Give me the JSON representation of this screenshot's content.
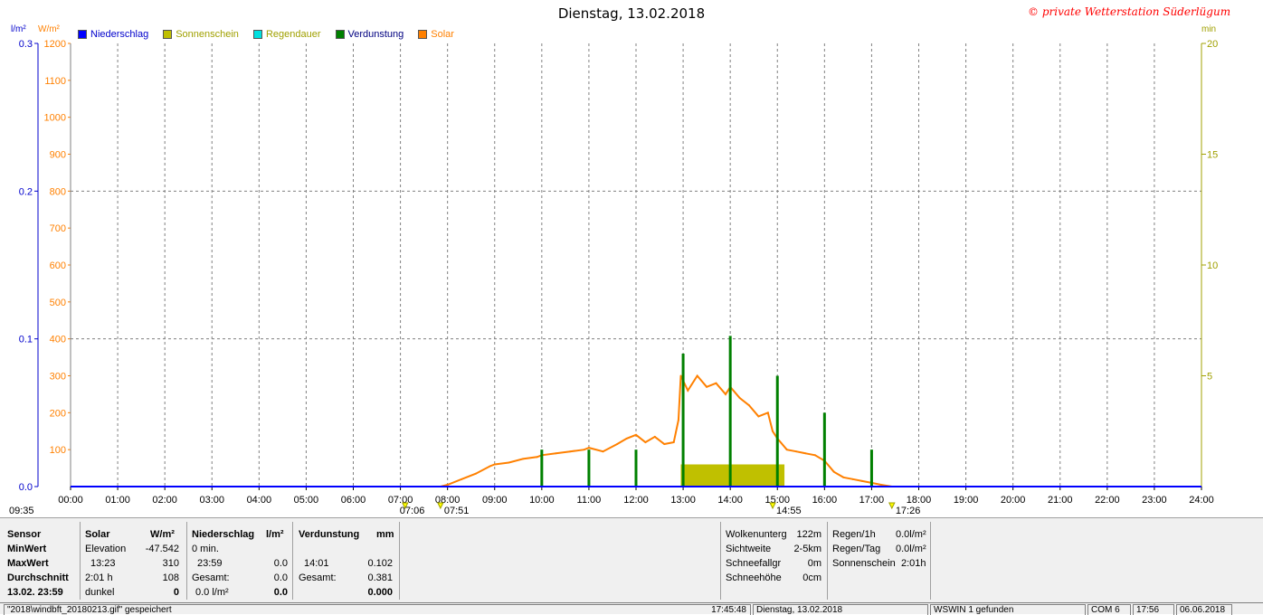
{
  "title": "Dienstag, 13.02.2018",
  "copyright": "© private Wetterstation Süderlügum",
  "units": {
    "left1": "l/m²",
    "left2": "W/m²",
    "right": "min"
  },
  "colors": {
    "rain": "#0000ff",
    "sunshine": "#c0c000",
    "rain_duration": "#00e0e0",
    "evaporation": "#008000",
    "solar": "#ff8000"
  },
  "legend": [
    {
      "label": "Niederschlag",
      "color": "#0000ff",
      "text_color": "#0000cc"
    },
    {
      "label": "Sonnenschein",
      "color": "#c0c000",
      "text_color": "#a0a000"
    },
    {
      "label": "Regendauer",
      "color": "#00e0e0",
      "text_color": "#a0a000"
    },
    {
      "label": "Verdunstung",
      "color": "#008000",
      "text_color": "#000080"
    },
    {
      "label": "Solar",
      "color": "#ff8000",
      "text_color": "#ff8000"
    }
  ],
  "chart_data": {
    "type": "line",
    "x_label_ticks": [
      "00:00",
      "01:00",
      "02:00",
      "03:00",
      "04:00",
      "05:00",
      "06:00",
      "07:00",
      "08:00",
      "09:00",
      "10:00",
      "11:00",
      "12:00",
      "13:00",
      "14:00",
      "15:00",
      "16:00",
      "17:00",
      "18:00",
      "19:00",
      "20:00",
      "21:00",
      "22:00",
      "23:00",
      "24:00"
    ],
    "x_range_hours": [
      0,
      24
    ],
    "y_left_rain": {
      "range": [
        0,
        0.3
      ],
      "ticks": [
        "0.0",
        "0.1",
        "0.2",
        "0.3"
      ]
    },
    "y_left_solar": {
      "range": [
        0,
        1200
      ],
      "ticks": [
        "100",
        "200",
        "300",
        "400",
        "500",
        "600",
        "700",
        "800",
        "900",
        "1000",
        "1100",
        "1200"
      ]
    },
    "y_right_min": {
      "range": [
        0,
        20
      ],
      "ticks": [
        "5",
        "10",
        "15",
        "20"
      ]
    },
    "grid": true,
    "markers": [
      {
        "label": "09:35",
        "hour": 0
      },
      {
        "label": "07:06",
        "hour": 7.1
      },
      {
        "label": "07:51",
        "hour": 7.85
      },
      {
        "label": "14:55",
        "hour": 14.9
      },
      {
        "label": "17:26",
        "hour": 17.43
      }
    ],
    "series": [
      {
        "name": "Solar",
        "unit": "W/m²",
        "x": [
          7.85,
          8.0,
          8.3,
          8.6,
          8.9,
          9.0,
          9.3,
          9.6,
          9.9,
          10.0,
          10.3,
          10.6,
          10.9,
          11.0,
          11.3,
          11.6,
          11.8,
          12.0,
          12.2,
          12.4,
          12.6,
          12.8,
          12.9,
          12.95,
          13.1,
          13.3,
          13.5,
          13.7,
          13.9,
          14.0,
          14.2,
          14.4,
          14.6,
          14.8,
          14.9,
          15.0,
          15.2,
          15.4,
          15.6,
          15.8,
          16.0,
          16.2,
          16.4,
          16.6,
          16.8,
          17.0,
          17.2,
          17.43
        ],
        "y": [
          0,
          5,
          20,
          35,
          55,
          60,
          65,
          75,
          80,
          85,
          90,
          95,
          100,
          105,
          95,
          115,
          130,
          140,
          120,
          135,
          115,
          120,
          180,
          300,
          260,
          300,
          270,
          280,
          250,
          270,
          240,
          220,
          190,
          200,
          150,
          130,
          100,
          95,
          90,
          85,
          70,
          40,
          25,
          20,
          15,
          10,
          5,
          0
        ]
      },
      {
        "name": "Sonnenschein",
        "unit": "min",
        "x_start": 12.95,
        "x_end": 15.15,
        "y": 1
      },
      {
        "name": "Verdunstung",
        "unit": "l/m²",
        "x": [
          10.0,
          11.0,
          12.0,
          13.0,
          14.0,
          15.0,
          16.0,
          17.0
        ],
        "y": [
          0.025,
          0.025,
          0.025,
          0.09,
          0.102,
          0.075,
          0.05,
          0.025
        ]
      },
      {
        "name": "Niederschlag",
        "unit": "l/m²",
        "x": [
          0,
          24
        ],
        "y": [
          0,
          0
        ]
      }
    ]
  },
  "stats": {
    "headers": {
      "sensor": "Sensor",
      "solar": "Solar",
      "solar_unit": "W/m²",
      "rain": "Niederschlag",
      "rain_unit": "l/m²",
      "evap": "Verdunstung",
      "evap_unit": "mm"
    },
    "rows": [
      {
        "label": "MinWert",
        "s1": "Elevation",
        "s2": "-47.542",
        "r1": "0 min.",
        "r2": "",
        "e1": "",
        "e2": ""
      },
      {
        "label": "MaxWert",
        "s1": "13:23",
        "s2": "310",
        "r1": "23:59",
        "r2": "0.0",
        "e1": "14:01",
        "e2": "0.102"
      },
      {
        "label": "Durchschnitt",
        "s1": "2:01 h",
        "s2": "108",
        "r1": "Gesamt:",
        "r2": "0.0",
        "e1": "Gesamt:",
        "e2": "0.381"
      },
      {
        "label": "13.02. 23:59",
        "s1": "dunkel",
        "s2": "0",
        "r1": "0.0 l/m²",
        "r2": "0.0",
        "e1": "",
        "e2": "0.000"
      }
    ],
    "extra_left": [
      {
        "k": "Wolkenunterg",
        "v": "122m"
      },
      {
        "k": "Sichtweite",
        "v": "2-5km"
      },
      {
        "k": "Schneefallgr",
        "v": "0m"
      },
      {
        "k": "Schneehöhe",
        "v": "0cm"
      }
    ],
    "extra_right": [
      {
        "k": "Regen/1h",
        "v": "0.0l/m²"
      },
      {
        "k": "Regen/Tag",
        "v": "0.0l/m²"
      },
      {
        "k": "Sonnenschein",
        "v": "2:01h"
      }
    ]
  },
  "statusbar": {
    "file": "\"2018\\windbft_20180213.gif\" gespeichert",
    "time": "17:45:48",
    "date": "Dienstag, 13.02.2018",
    "found": "WSWIN 1 gefunden",
    "com": "COM 6",
    "clock": "17:56",
    "today": "06.06.2018"
  }
}
